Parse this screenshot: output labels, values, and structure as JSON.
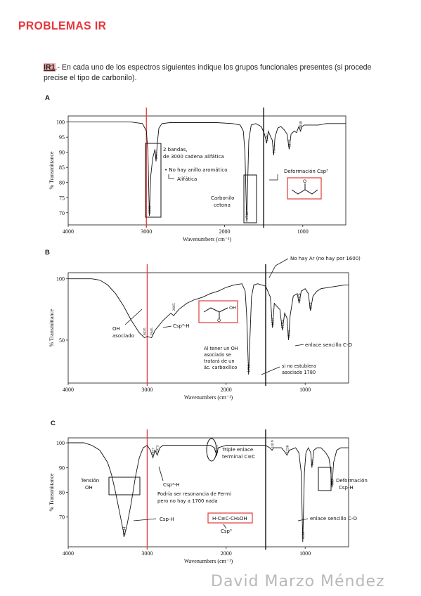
{
  "page": {
    "title": "PROBLEMAS IR",
    "intro_tag": "IR1",
    "intro_text": ".- En cada uno de los espectros siguientes indique los grupos funcionales presentes (si procede precise el tipo de carbonilo).",
    "footer": "David Marzo Méndez"
  },
  "chart_data": [
    {
      "id": "A",
      "type": "line",
      "xlabel": "Wavenumbers (cm⁻¹)",
      "ylabel": "% Transmittance",
      "xlim": [
        4000,
        450
      ],
      "ylim": [
        66,
        102
      ],
      "xticks": [
        "4000",
        "3000",
        "2000",
        "1000"
      ],
      "yticks": [
        "100",
        "95",
        "90",
        "85",
        "80",
        "75",
        "70"
      ],
      "peaks": [
        {
          "x": 2962,
          "y": 69,
          "label": "2962"
        },
        {
          "x": 2877,
          "y": 87,
          "label": "2877"
        },
        {
          "x": 1716,
          "y": 67,
          "label": "1716"
        },
        {
          "x": 1462,
          "y": 93,
          "label": "1462"
        },
        {
          "x": 1373,
          "y": 89,
          "label": "1373"
        },
        {
          "x": 1174,
          "y": 91,
          "label": "1174"
        },
        {
          "x": 1030,
          "y": 97,
          "label": "1030"
        }
      ],
      "series": [
        {
          "x": [
            4000,
            3600,
            3200,
            3050,
            3000,
            2980,
            2962,
            2945,
            2920,
            2890,
            2877,
            2860,
            2840,
            2800,
            2700,
            2500,
            2300,
            2100,
            1900,
            1800,
            1760,
            1740,
            1725,
            1716,
            1705,
            1690,
            1660,
            1600,
            1530,
            1490,
            1462,
            1440,
            1410,
            1390,
            1373,
            1355,
            1320,
            1280,
            1240,
            1200,
            1174,
            1150,
            1110,
            1080,
            1050,
            1030,
            1010,
            980,
            900,
            800,
            700,
            600,
            500,
            450
          ],
          "y": [
            100,
            100,
            100,
            99.5,
            97,
            90,
            69,
            82,
            88,
            91,
            87,
            93,
            98,
            99.5,
            99.8,
            99.8,
            99.8,
            99.8,
            99.5,
            99,
            97,
            90,
            75,
            67,
            80,
            94,
            99,
            99.5,
            98.5,
            96,
            93,
            97,
            95,
            94,
            89,
            95,
            98,
            98.5,
            97.5,
            96,
            91,
            96,
            97,
            96.5,
            98.5,
            97,
            98.5,
            99,
            99,
            99,
            99.5,
            99.5,
            99.5,
            99.5
          ]
        }
      ],
      "annotations": [
        "2 bandas, por debajo de 3000 cadena alifática",
        "No hay anillo aromático",
        "Alifática",
        "Carbonilo cetona",
        "Deformación Csp³"
      ],
      "vlines": [
        3000,
        1500
      ]
    },
    {
      "id": "B",
      "type": "line",
      "xlabel": "Wavenumbers (cm⁻¹)",
      "ylabel": "% Transmittance",
      "xlim": [
        4000,
        450
      ],
      "ylim": [
        15,
        105
      ],
      "xticks": [
        "4000",
        "3000",
        "2000",
        "1000"
      ],
      "yticks": [
        "100",
        "50"
      ],
      "peaks": [
        {
          "x": 3035,
          "y": 52,
          "label": "3035"
        },
        {
          "x": 2945,
          "y": 52,
          "label": "2945"
        },
        {
          "x": 2665,
          "y": 72,
          "label": "2665"
        },
        {
          "x": 1716,
          "y": 22,
          "label": "1716"
        },
        {
          "x": 1414,
          "y": 60,
          "label": "1414"
        },
        {
          "x": 1289,
          "y": 58,
          "label": "1289"
        },
        {
          "x": 1210,
          "y": 50,
          "label": "1210"
        },
        {
          "x": 1076,
          "y": 80,
          "label": "1076"
        },
        {
          "x": 933,
          "y": 74,
          "label": "933"
        }
      ],
      "series": [
        {
          "x": [
            4000,
            3700,
            3600,
            3500,
            3400,
            3300,
            3200,
            3100,
            3035,
            3000,
            2945,
            2900,
            2800,
            2700,
            2665,
            2600,
            2500,
            2400,
            2300,
            2200,
            2100,
            2000,
            1900,
            1800,
            1760,
            1740,
            1716,
            1700,
            1680,
            1650,
            1600,
            1500,
            1440,
            1414,
            1390,
            1350,
            1320,
            1289,
            1260,
            1230,
            1210,
            1190,
            1150,
            1100,
            1076,
            1050,
            1000,
            960,
            933,
            900,
            850,
            800,
            700,
            600,
            500,
            450
          ],
          "y": [
            100,
            100,
            99,
            95,
            88,
            78,
            66,
            56,
            52,
            53,
            52,
            58,
            66,
            72,
            70,
            75,
            80,
            83,
            85,
            88,
            90,
            93,
            95,
            96,
            90,
            70,
            22,
            50,
            85,
            95,
            96,
            94,
            85,
            60,
            80,
            77,
            75,
            58,
            72,
            68,
            50,
            70,
            86,
            88,
            80,
            90,
            92,
            88,
            74,
            86,
            90,
            92,
            93,
            94,
            95,
            95
          ]
        }
      ],
      "annotations": [
        "No hay Ar (no hay por 1600)",
        "OH asociado",
        "Csp³-H",
        "enlace sencillo C-O",
        "Al tener un OH asociado se tratará de un ác. carboxílico",
        "si no estubiera asociado 1780"
      ],
      "vlines": [
        3000,
        1500
      ]
    },
    {
      "id": "C",
      "type": "line",
      "xlabel": "Wavenumbers (cm⁻¹)",
      "ylabel": "% Transmittance",
      "xlim": [
        4000,
        450
      ],
      "ylim": [
        58,
        102
      ],
      "xticks": [
        "4000",
        "3000",
        "2000",
        "1000"
      ],
      "yticks": [
        "100",
        "90",
        "80",
        "70"
      ],
      "peaks": [
        {
          "x": 3294,
          "y": 62,
          "label": "3294"
        },
        {
          "x": 2927,
          "y": 94,
          "label": "2927"
        },
        {
          "x": 2873,
          "y": 95,
          "label": "2873"
        },
        {
          "x": 2121,
          "y": 95,
          "label": "2121"
        },
        {
          "x": 1419,
          "y": 97,
          "label": "1419"
        },
        {
          "x": 1230,
          "y": 95,
          "label": "1230"
        },
        {
          "x": 1030,
          "y": 60,
          "label": "1030"
        },
        {
          "x": 914,
          "y": 90,
          "label": "914"
        },
        {
          "x": 660,
          "y": 82,
          "label": "660"
        }
      ],
      "series": [
        {
          "x": [
            4000,
            3800,
            3700,
            3600,
            3500,
            3450,
            3400,
            3350,
            3300,
            3294,
            3260,
            3200,
            3150,
            3100,
            3050,
            3000,
            2960,
            2927,
            2900,
            2873,
            2840,
            2800,
            2600,
            2400,
            2200,
            2150,
            2121,
            2100,
            2000,
            1800,
            1600,
            1500,
            1450,
            1419,
            1400,
            1300,
            1250,
            1230,
            1200,
            1120,
            1080,
            1050,
            1030,
            1010,
            990,
            960,
            930,
            914,
            890,
            850,
            800,
            740,
            700,
            680,
            660,
            640,
            600,
            550,
            500,
            450
          ],
          "y": [
            100,
            100,
            99,
            97,
            92,
            87,
            80,
            72,
            64,
            62,
            66,
            76,
            86,
            94,
            98,
            99,
            97,
            94,
            97,
            95,
            98,
            99,
            99,
            99,
            99,
            98,
            95,
            98,
            99,
            99,
            99,
            99,
            98,
            97,
            98,
            98,
            96,
            95,
            97,
            98,
            96,
            88,
            60,
            88,
            96,
            98,
            96,
            90,
            97,
            98,
            98,
            96,
            94,
            90,
            82,
            92,
            97,
            98,
            98,
            98
          ]
        }
      ],
      "annotations": [
        "Tensión OH",
        "Csp³-H",
        "Podría ser resonancia de Fermi pero no hay a 1700 nada",
        "Triple enlace terminal C≡C",
        "Csp-H",
        "H-C≡C-CH₂OH",
        "Csp³",
        "Deformación Csp-H",
        "enlace sencillo C-O"
      ],
      "vlines": [
        3000,
        1500
      ]
    }
  ]
}
